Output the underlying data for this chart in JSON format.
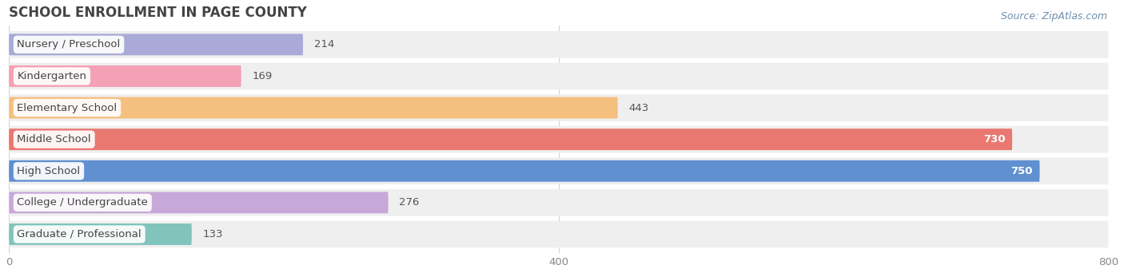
{
  "title": "SCHOOL ENROLLMENT IN PAGE COUNTY",
  "source": "Source: ZipAtlas.com",
  "categories": [
    "Nursery / Preschool",
    "Kindergarten",
    "Elementary School",
    "Middle School",
    "High School",
    "College / Undergraduate",
    "Graduate / Professional"
  ],
  "values": [
    214,
    169,
    443,
    730,
    750,
    276,
    133
  ],
  "colors": [
    "#aaaad8",
    "#f4a0b5",
    "#f4c080",
    "#e87870",
    "#6090d0",
    "#c8a8d8",
    "#80c4bc"
  ],
  "bar_bg_color": "#efefef",
  "xlim": [
    0,
    800
  ],
  "xticks": [
    0,
    400,
    800
  ],
  "background_color": "#ffffff",
  "title_fontsize": 12,
  "label_fontsize": 9.5,
  "value_fontsize": 9.5,
  "source_fontsize": 9
}
